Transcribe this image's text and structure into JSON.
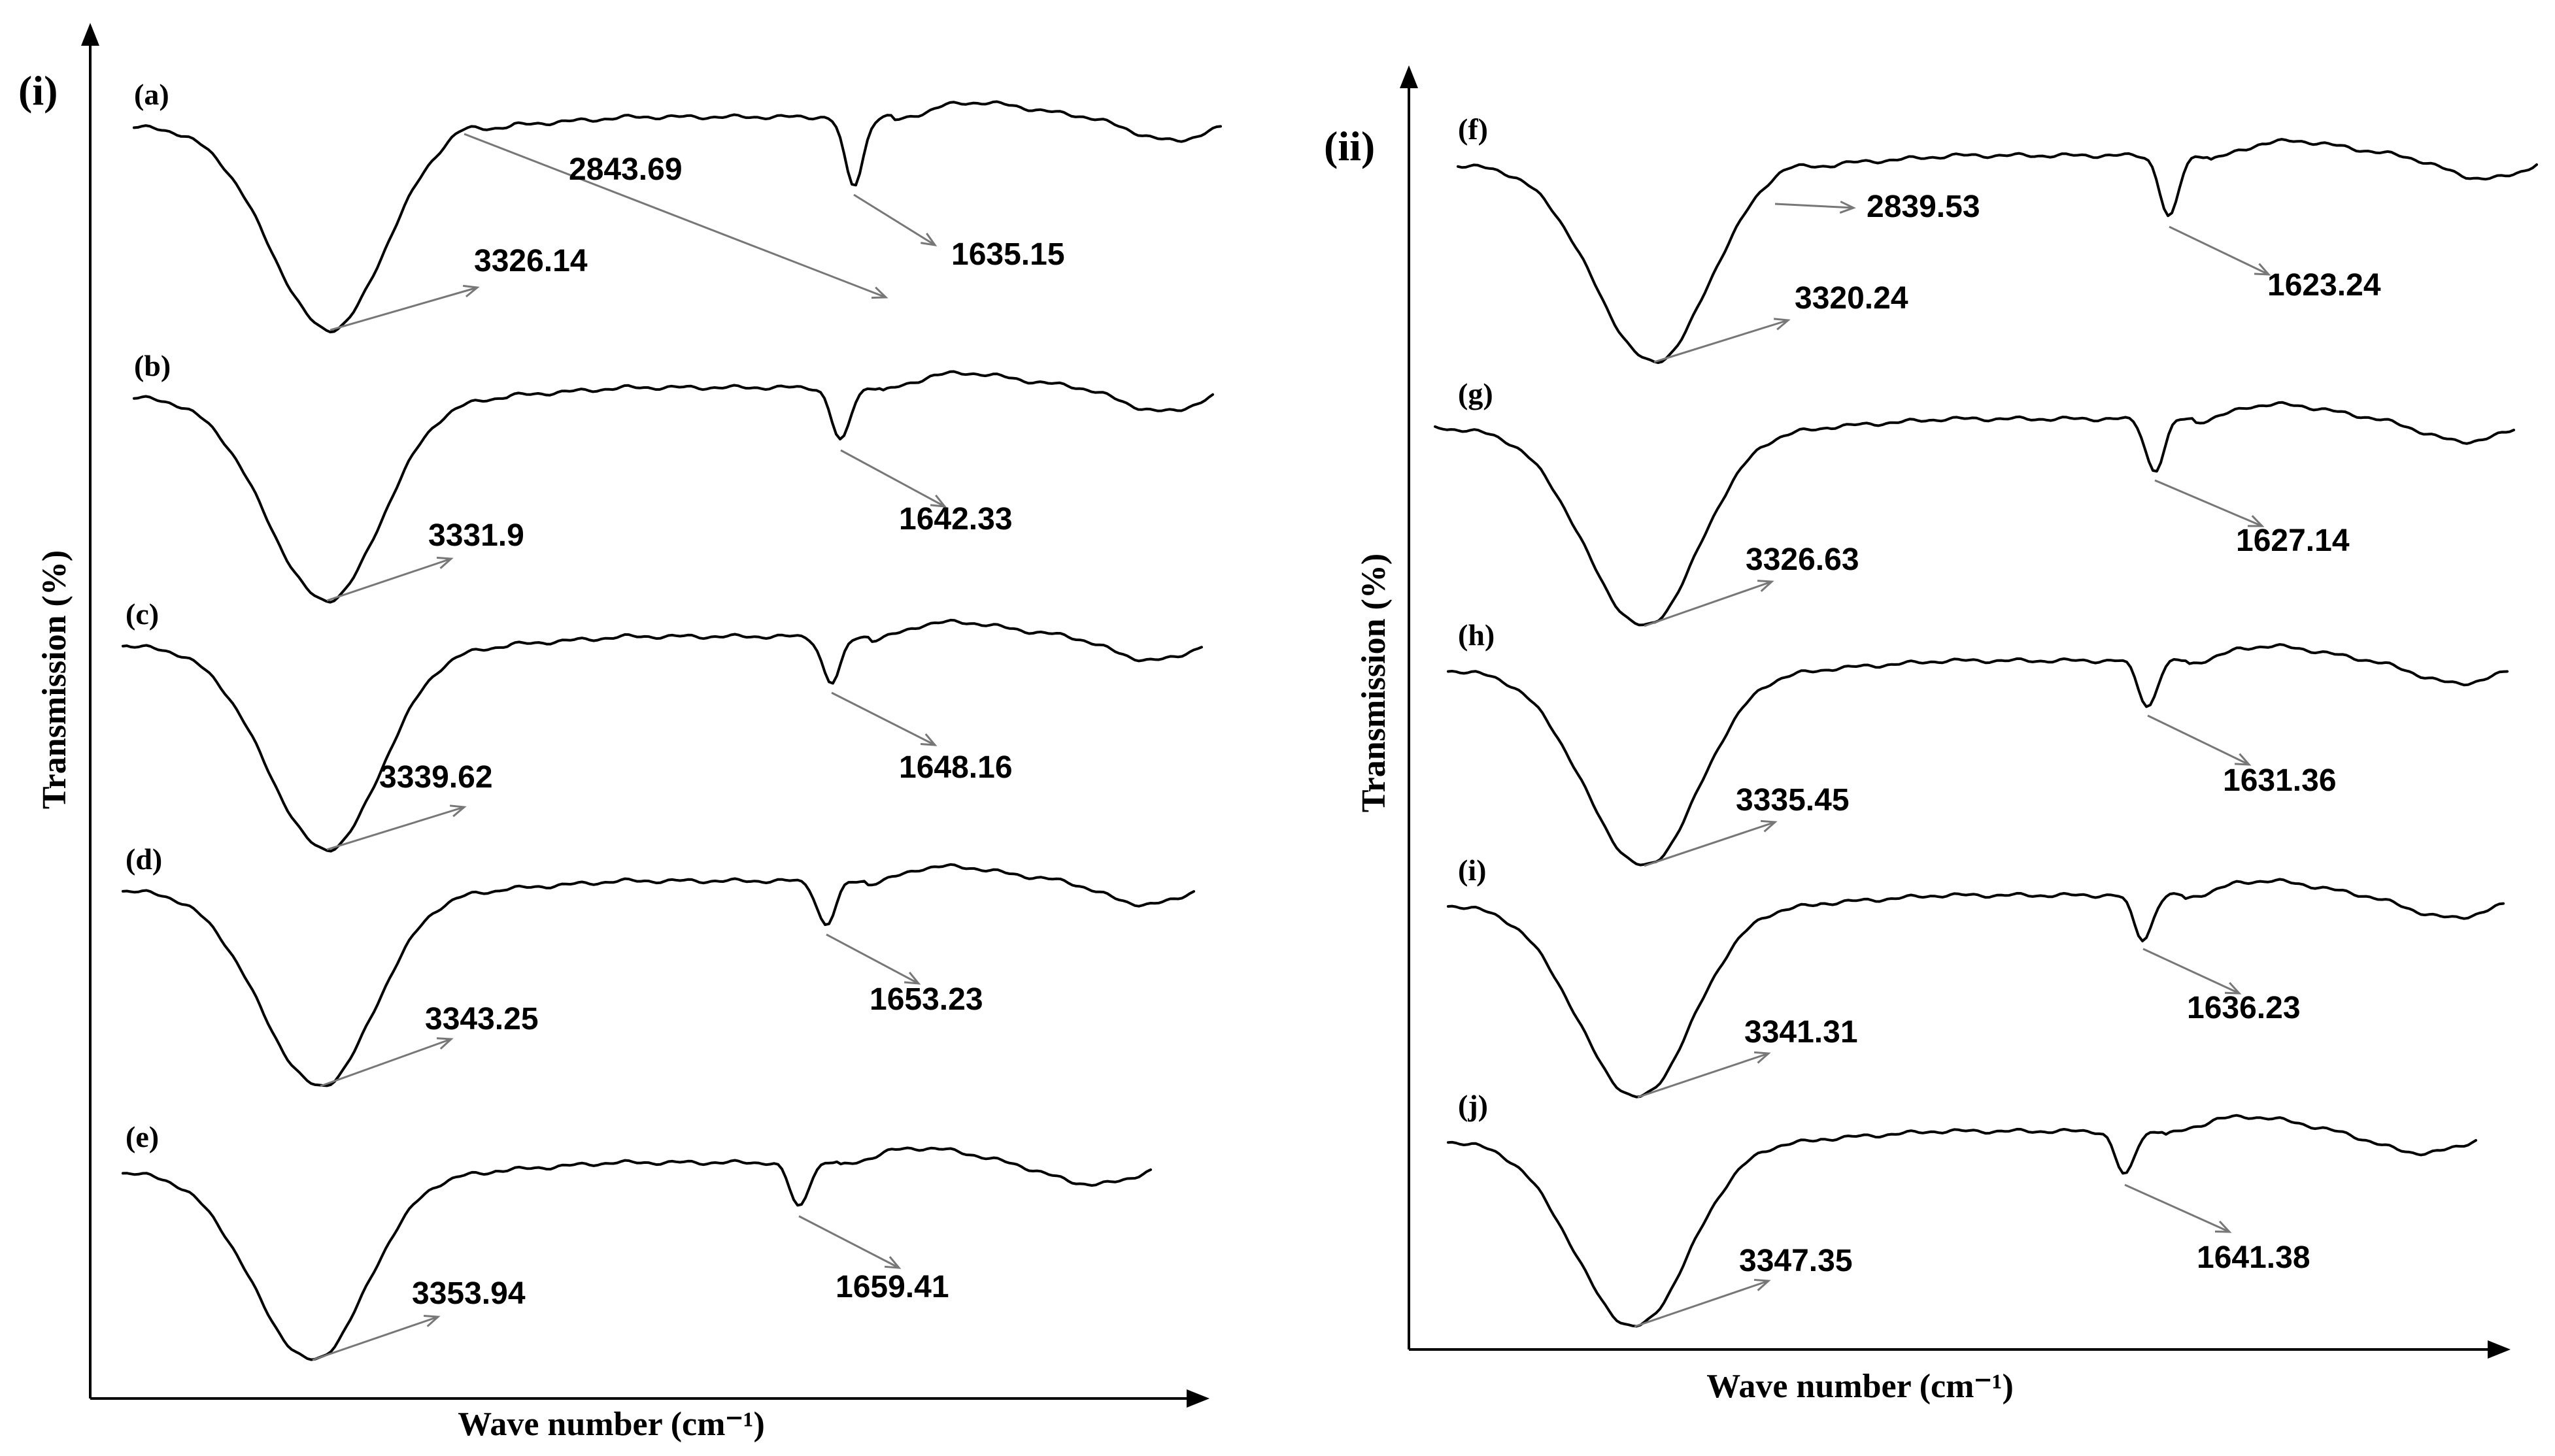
{
  "chart_data": [
    {
      "type": "line",
      "panel_label": "(i)",
      "xlabel": "Wave number (cm⁻¹)",
      "ylabel": "Transmission (%)",
      "series": [
        {
          "name": "(a)",
          "peaks": [
            {
              "label": "2843.69"
            },
            {
              "label": "3326.14"
            },
            {
              "label": "1635.15"
            }
          ]
        },
        {
          "name": "(b)",
          "peaks": [
            {
              "label": "3331.9"
            },
            {
              "label": "1642.33"
            }
          ]
        },
        {
          "name": "(c)",
          "peaks": [
            {
              "label": "3339.62"
            },
            {
              "label": "1648.16"
            }
          ]
        },
        {
          "name": "(d)",
          "peaks": [
            {
              "label": "3343.25"
            },
            {
              "label": "1653.23"
            }
          ]
        },
        {
          "name": "(e)",
          "peaks": [
            {
              "label": "3353.94"
            },
            {
              "label": "1659.41"
            }
          ]
        }
      ]
    },
    {
      "type": "line",
      "panel_label": "(ii)",
      "xlabel": "Wave number (cm⁻¹)",
      "ylabel": "Transmission (%)",
      "series": [
        {
          "name": "(f)",
          "peaks": [
            {
              "label": "2839.53"
            },
            {
              "label": "3320.24"
            },
            {
              "label": "1623.24"
            }
          ]
        },
        {
          "name": "(g)",
          "peaks": [
            {
              "label": "3326.63"
            },
            {
              "label": "1627.14"
            }
          ]
        },
        {
          "name": "(h)",
          "peaks": [
            {
              "label": "3335.45"
            },
            {
              "label": "1631.36"
            }
          ]
        },
        {
          "name": "(i)",
          "peaks": [
            {
              "label": "3341.31"
            },
            {
              "label": "1636.23"
            }
          ]
        },
        {
          "name": "(j)",
          "peaks": [
            {
              "label": "3347.35"
            },
            {
              "label": "1641.38"
            }
          ]
        }
      ]
    }
  ]
}
